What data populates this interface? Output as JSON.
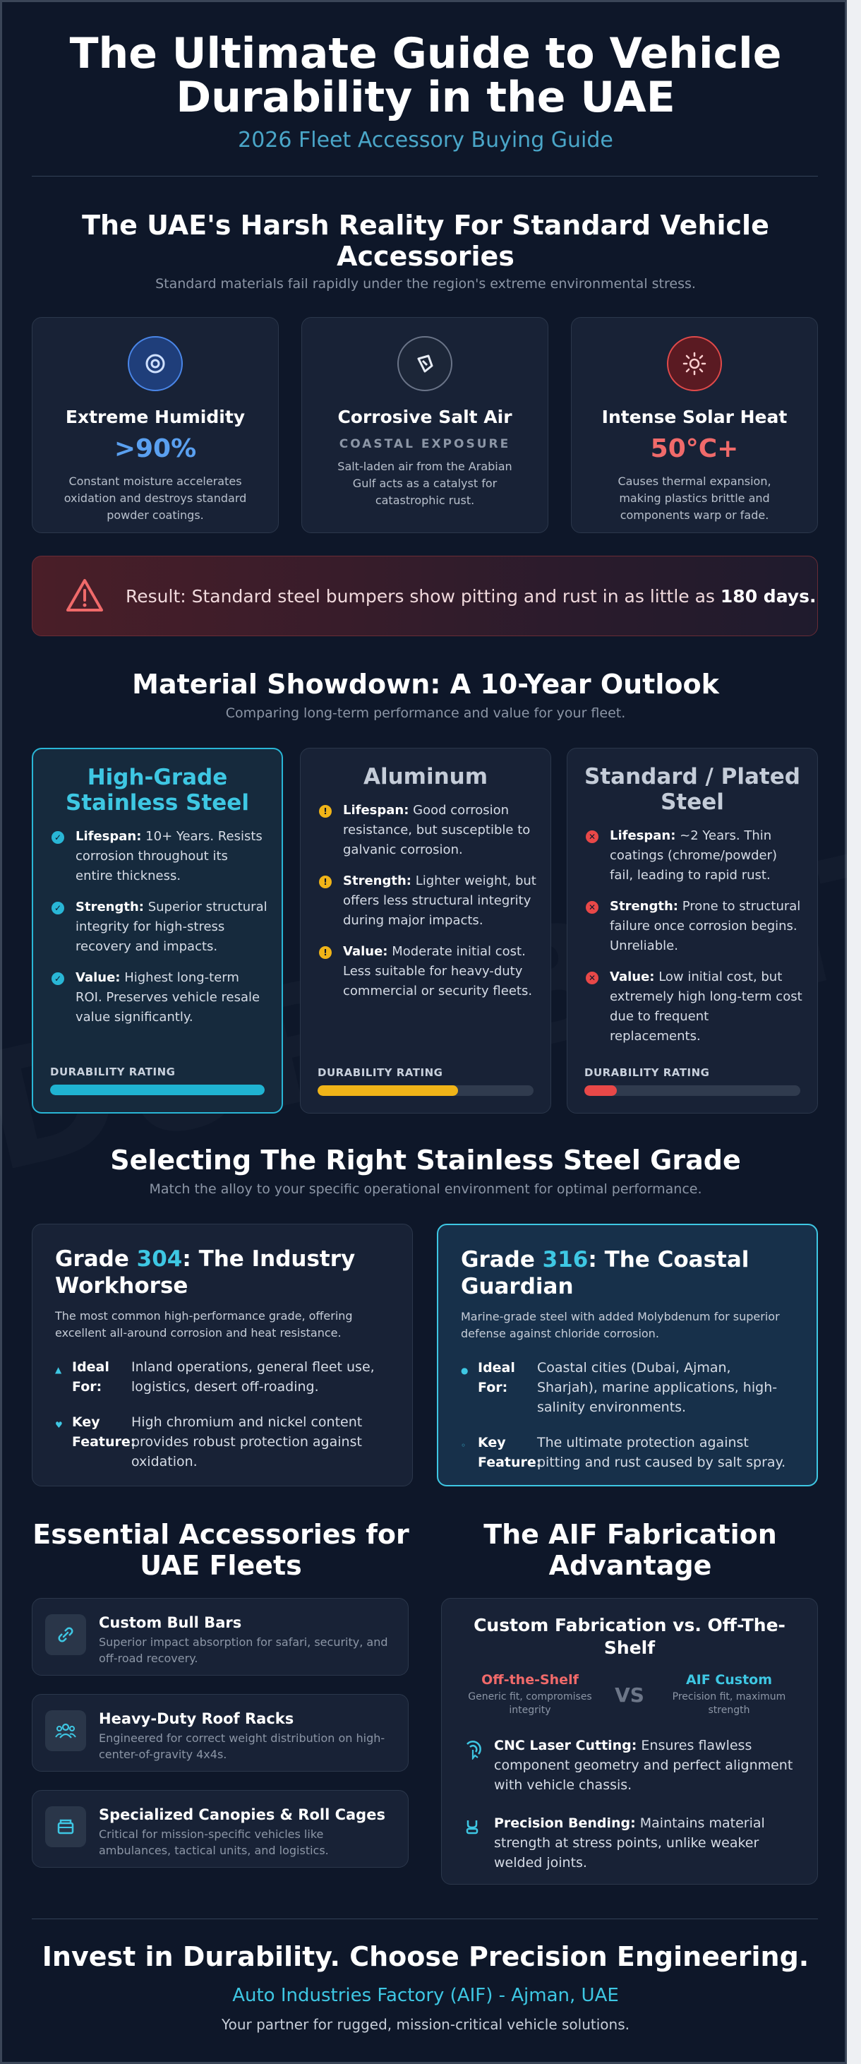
{
  "hero": {
    "title": "The Ultimate Guide to Vehicle Durability in the UAE",
    "subtitle": "2026 Fleet Accessory Buying Guide"
  },
  "reality": {
    "title": "The UAE's Harsh Reality For Standard Vehicle Accessories",
    "subtitle": "Standard materials fail rapidly under the region's extreme environmental stress.",
    "cards": [
      {
        "icon": "humidity-icon",
        "title": "Extreme Humidity",
        "stat": ">90%",
        "label": "",
        "desc": "Constant moisture accelerates oxidation and destroys standard powder coatings.",
        "color": "#5aa0f0"
      },
      {
        "icon": "salt-icon",
        "title": "Corrosive Salt Air",
        "stat": "",
        "label": "COASTAL EXPOSURE",
        "desc": "Salt-laden air from the Arabian Gulf acts as a catalyst for catastrophic rust.",
        "color": "#d6dce6"
      },
      {
        "icon": "sun-icon",
        "title": "Intense Solar Heat",
        "stat": "50°C+",
        "label": "",
        "desc": "Causes thermal expansion, making plastics brittle and components warp or fade.",
        "color": "#f06a6a"
      }
    ],
    "alert_text": "Result: Standard steel bumpers show pitting and rust in as little as ",
    "alert_strong": "180 days."
  },
  "materials": {
    "title": "Material Showdown: A 10-Year Outlook",
    "subtitle": "Comparing long-term performance and value for your fleet.",
    "rating_label": "DURABILITY RATING",
    "cards": [
      {
        "name": "High-Grade Stainless Steel",
        "color": "#3ec7e3",
        "rating": 1.0,
        "bar_color": "#1fb3d2",
        "points": [
          {
            "k": "Lifespan:",
            "v": " 10+ Years. Resists corrosion throughout its entire thickness."
          },
          {
            "k": "Strength:",
            "v": " Superior structural integrity for high-stress recovery and impacts."
          },
          {
            "k": "Value:",
            "v": " Highest long-term ROI. Preserves vehicle resale value significantly."
          }
        ]
      },
      {
        "name": "Aluminum",
        "color": "#c4ccd8",
        "rating": 0.65,
        "bar_color": "#f0b418",
        "points": [
          {
            "k": "Lifespan:",
            "v": " Good corrosion resistance, but susceptible to galvanic corrosion."
          },
          {
            "k": "Strength:",
            "v": " Lighter weight, but offers less structural integrity during major impacts."
          },
          {
            "k": "Value:",
            "v": " Moderate initial cost. Less suitable for heavy-duty commercial or security fleets."
          }
        ]
      },
      {
        "name": "Standard / Plated Steel",
        "color": "#c4ccd8",
        "rating": 0.15,
        "bar_color": "#e84848",
        "points": [
          {
            "k": "Lifespan:",
            "v": " ~2 Years. Thin coatings (chrome/powder) fail, leading to rapid rust."
          },
          {
            "k": "Strength:",
            "v": " Prone to structural failure once corrosion begins. Unreliable."
          },
          {
            "k": "Value:",
            "v": " Low initial cost, but extremely high long-term cost due to frequent replacements."
          }
        ]
      }
    ]
  },
  "grades": {
    "title": "Selecting The Right Stainless Steel Grade",
    "subtitle": "Match the alloy to your specific operational environment for optimal performance.",
    "cards": [
      {
        "pre": "Grade ",
        "num": "304",
        "post": ": The Industry Workhorse",
        "desc": "The most common high-performance grade, offering excellent all-around corrosion and heat resistance.",
        "ideal_label": "Ideal For:",
        "ideal": "Inland operations, general fleet use, logistics, desert off-roading.",
        "key_label": "Key Feature:",
        "key": "High chromium and nickel content provides robust protection against oxidation."
      },
      {
        "pre": "Grade ",
        "num": "316",
        "post": ": The Coastal Guardian",
        "desc": "Marine-grade steel with added Molybdenum for superior defense against chloride corrosion.",
        "ideal_label": "Ideal For:",
        "ideal": "Coastal cities (Dubai, Ajman, Sharjah), marine applications, high-salinity environments.",
        "key_label": "Key Feature:",
        "key": "The ultimate protection against pitting and rust caused by salt spray."
      }
    ]
  },
  "accessories": {
    "title": "Essential Accessories for UAE Fleets",
    "items": [
      {
        "icon": "link-icon",
        "name": "Custom Bull Bars",
        "desc": "Superior impact absorption for safari, security, and off-road recovery."
      },
      {
        "icon": "users-icon",
        "name": "Heavy-Duty Roof Racks",
        "desc": "Engineered for correct weight distribution on high-center-of-gravity 4x4s."
      },
      {
        "icon": "box-icon",
        "name": "Specialized Canopies & Roll Cages",
        "desc": "Critical for mission-specific vehicles like ambulances, tactical units, and logistics."
      }
    ]
  },
  "aif": {
    "title": "The AIF Fabrication Advantage",
    "card_title": "Custom Fabrication vs. Off-The-Shelf",
    "left_label": "Off-the-Shelf",
    "left_desc": "Generic fit, compromises integrity",
    "vs": "VS",
    "right_label": "AIF Custom",
    "right_desc": "Precision fit, maximum strength",
    "points": [
      {
        "icon": "laser-icon",
        "k": "CNC Laser Cutting:",
        "v": " Ensures flawless component geometry and perfect alignment with vehicle chassis."
      },
      {
        "icon": "bend-icon",
        "k": "Precision Bending:",
        "v": " Maintains material strength at stress points, unlike weaker welded joints."
      }
    ]
  },
  "footer": {
    "title": "Invest in Durability. Choose Precision Engineering.",
    "company": "Auto Industries Factory (AIF) - Ajman, UAE",
    "tagline": "Your partner for rugged, mission-critical vehicle solutions."
  }
}
